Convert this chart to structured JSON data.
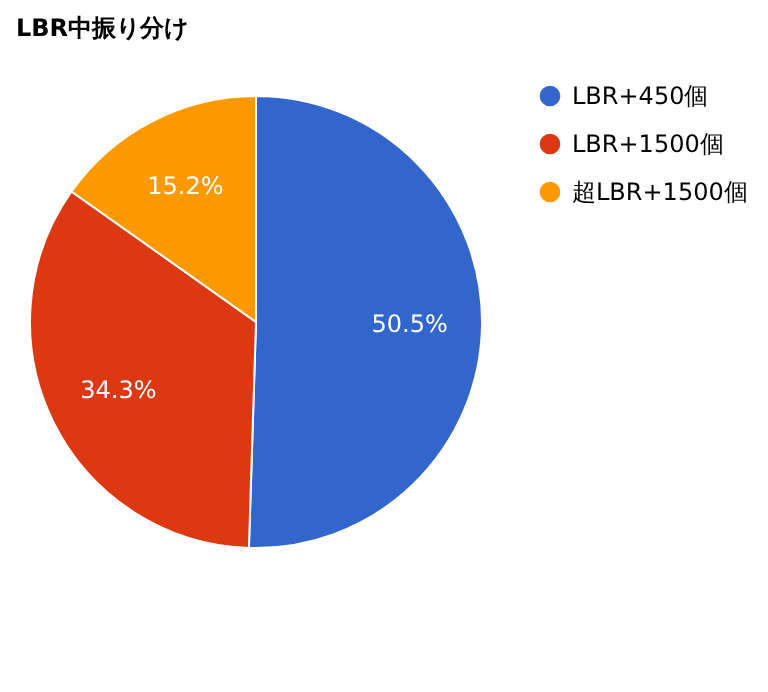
{
  "chart_data": {
    "type": "pie",
    "title": "LBR中振り分け",
    "categories": [
      "LBR+450個",
      "LBR+1500個",
      "超LBR+1500個"
    ],
    "values": [
      50.5,
      34.3,
      15.2
    ],
    "colors": [
      "#3366cc",
      "#dc3912",
      "#ff9900"
    ],
    "value_labels": [
      "50.5%",
      "34.3%",
      "15.2%"
    ],
    "legend": "top right"
  }
}
